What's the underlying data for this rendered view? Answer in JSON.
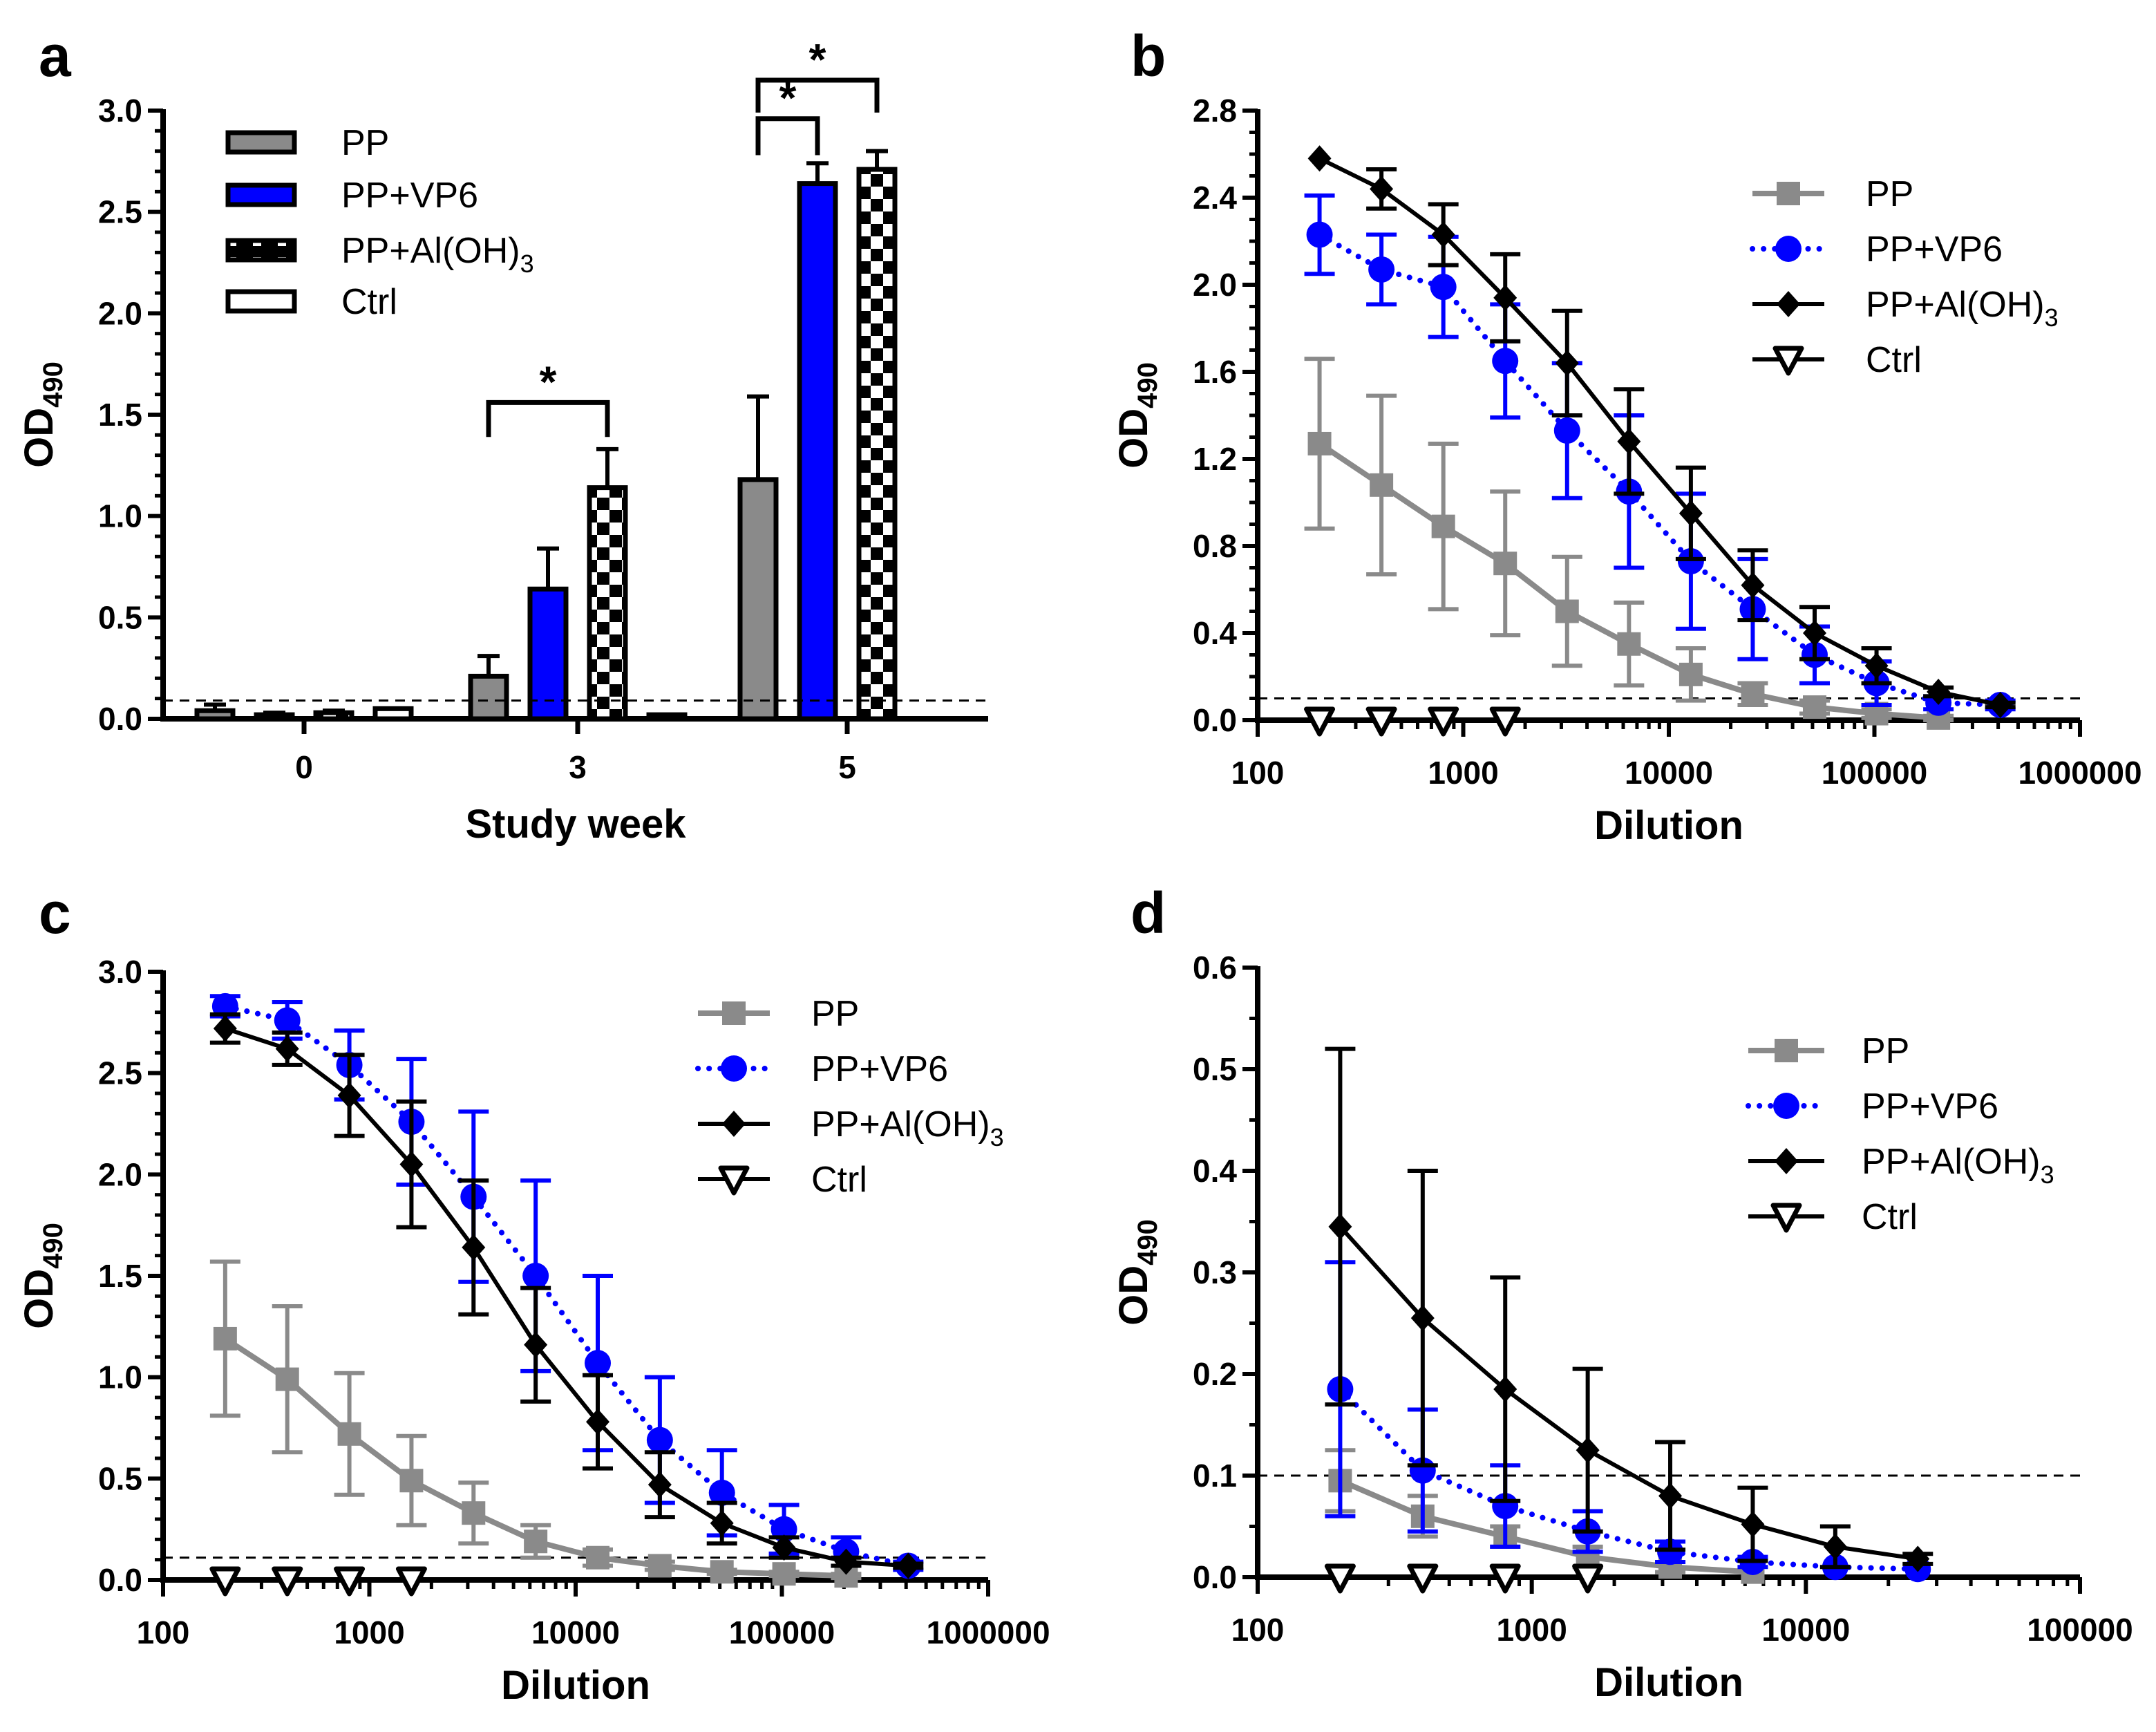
{
  "panel_letters": [
    "a",
    "b",
    "c",
    "d"
  ],
  "colors": {
    "PP": "#8a8a8a",
    "PP+VP6": "#0000ff",
    "PP+Al(OH)3": "#000000",
    "Ctrl": "#000000"
  },
  "chart_data": [
    {
      "panel": "a",
      "type": "bar",
      "xlabel": "Study week",
      "ylabel": "OD",
      "ylabel_sub": "490",
      "ylim": [
        0,
        3.0
      ],
      "yticks": [
        "0.0",
        "0.5",
        "1.0",
        "1.5",
        "2.0",
        "2.5",
        "3.0"
      ],
      "categories": [
        "0",
        "3",
        "5"
      ],
      "cutoff": 0.09,
      "series": [
        {
          "name": "PP",
          "values": [
            0.04,
            0.21,
            1.18
          ],
          "errors": [
            0.03,
            0.1,
            0.41
          ]
        },
        {
          "name": "PP+VP6",
          "values": [
            0.02,
            0.64,
            2.64
          ],
          "errors": [
            0.01,
            0.2,
            0.1
          ]
        },
        {
          "name": "PP+Al(OH)3",
          "values": [
            0.03,
            1.14,
            2.71
          ],
          "errors": [
            0.01,
            0.19,
            0.09
          ]
        },
        {
          "name": "Ctrl",
          "values": [
            0.05,
            0.02,
            0.0
          ],
          "errors": [
            0.0,
            0.0,
            0.0
          ]
        }
      ],
      "significance": [
        {
          "week": "3",
          "from": "PP",
          "to": "PP+Al(OH)3",
          "label": "*"
        },
        {
          "week": "5",
          "from": "PP",
          "to": "PP+VP6",
          "label": "*"
        },
        {
          "week": "5",
          "from": "PP",
          "to": "PP+Al(OH)3",
          "label": "*"
        }
      ]
    },
    {
      "panel": "b",
      "type": "line",
      "xlabel": "Dilution",
      "ylabel": "OD",
      "ylabel_sub": "490",
      "xscale": "log",
      "xlim": [
        100,
        1000000
      ],
      "xticks": [
        "100",
        "1000",
        "10000",
        "100000",
        "1000000"
      ],
      "ylim": [
        0,
        2.8
      ],
      "yticks": [
        "0.0",
        "0.4",
        "0.8",
        "1.2",
        "1.6",
        "2.0",
        "2.4",
        "2.8"
      ],
      "cutoff": 0.1,
      "series": [
        {
          "name": "PP",
          "x": [
            200,
            400,
            800,
            1600,
            3200,
            6400,
            12800,
            25600,
            51200,
            102400,
            204800
          ],
          "y": [
            1.27,
            1.08,
            0.89,
            0.72,
            0.5,
            0.35,
            0.21,
            0.12,
            0.06,
            0.03,
            0.01
          ],
          "err": [
            0.39,
            0.41,
            0.38,
            0.33,
            0.25,
            0.19,
            0.12,
            0.05,
            0.03,
            0.02,
            0.01
          ]
        },
        {
          "name": "PP+VP6",
          "x": [
            200,
            400,
            800,
            1600,
            3200,
            6400,
            12800,
            25600,
            51200,
            102400,
            204800,
            409600
          ],
          "y": [
            2.23,
            2.07,
            1.99,
            1.65,
            1.33,
            1.05,
            0.73,
            0.51,
            0.3,
            0.17,
            0.08,
            0.07
          ],
          "err": [
            0.18,
            0.16,
            0.23,
            0.26,
            0.31,
            0.35,
            0.31,
            0.23,
            0.13,
            0.1,
            0.03,
            0.02
          ]
        },
        {
          "name": "PP+Al(OH)3",
          "x": [
            200,
            400,
            800,
            1600,
            3200,
            6400,
            12800,
            25600,
            51200,
            102400,
            204800,
            409600
          ],
          "y": [
            2.58,
            2.44,
            2.23,
            1.94,
            1.64,
            1.28,
            0.95,
            0.62,
            0.4,
            0.25,
            0.13,
            0.07
          ],
          "err": [
            0.0,
            0.09,
            0.14,
            0.2,
            0.24,
            0.24,
            0.21,
            0.16,
            0.12,
            0.08,
            0.02,
            0.01
          ]
        },
        {
          "name": "Ctrl",
          "x": [
            200,
            400,
            800,
            1600
          ],
          "y": [
            0,
            0,
            0,
            0
          ],
          "err": [
            0,
            0,
            0,
            0
          ]
        }
      ]
    },
    {
      "panel": "c",
      "type": "line",
      "xlabel": "Dilution",
      "ylabel": "OD",
      "ylabel_sub": "490",
      "xscale": "log",
      "xlim": [
        100,
        1000000
      ],
      "xticks": [
        "100",
        "1000",
        "10000",
        "100000",
        "1000000"
      ],
      "ylim": [
        0,
        3.0
      ],
      "yticks": [
        "0.0",
        "0.5",
        "1.0",
        "1.5",
        "2.0",
        "2.5",
        "3.0"
      ],
      "cutoff": 0.11,
      "series": [
        {
          "name": "PP",
          "x": [
            200,
            400,
            800,
            1600,
            3200,
            6400,
            12800,
            25600,
            51200,
            102400,
            204800
          ],
          "y": [
            1.19,
            0.99,
            0.72,
            0.49,
            0.33,
            0.19,
            0.11,
            0.07,
            0.04,
            0.03,
            0.02
          ],
          "err": [
            0.38,
            0.36,
            0.3,
            0.22,
            0.15,
            0.08,
            0.04,
            0.02,
            0.01,
            0.01,
            0.01
          ]
        },
        {
          "name": "PP+VP6",
          "x": [
            200,
            400,
            800,
            1600,
            3200,
            6400,
            12800,
            25600,
            51200,
            102400,
            204800,
            409600
          ],
          "y": [
            2.83,
            2.76,
            2.54,
            2.26,
            1.89,
            1.5,
            1.07,
            0.69,
            0.43,
            0.25,
            0.14,
            0.07
          ],
          "err": [
            0.05,
            0.09,
            0.17,
            0.31,
            0.42,
            0.47,
            0.43,
            0.31,
            0.21,
            0.12,
            0.07,
            0.02
          ]
        },
        {
          "name": "PP+Al(OH)3",
          "x": [
            200,
            400,
            800,
            1600,
            3200,
            6400,
            12800,
            25600,
            51200,
            102400,
            204800,
            409600
          ],
          "y": [
            2.72,
            2.62,
            2.39,
            2.05,
            1.64,
            1.16,
            0.78,
            0.47,
            0.28,
            0.16,
            0.09,
            0.07
          ],
          "err": [
            0.07,
            0.08,
            0.2,
            0.31,
            0.33,
            0.28,
            0.23,
            0.16,
            0.1,
            0.05,
            0.02,
            0.01
          ]
        },
        {
          "name": "Ctrl",
          "x": [
            200,
            400,
            800,
            1600
          ],
          "y": [
            0,
            0,
            0,
            0
          ],
          "err": [
            0,
            0,
            0,
            0
          ]
        }
      ]
    },
    {
      "panel": "d",
      "type": "line",
      "xlabel": "Dilution",
      "ylabel": "OD",
      "ylabel_sub": "490",
      "xscale": "log",
      "xlim": [
        100,
        100000
      ],
      "xticks": [
        "100",
        "1000",
        "10000",
        "100000"
      ],
      "ylim": [
        0,
        0.6
      ],
      "yticks": [
        "0.0",
        "0.1",
        "0.2",
        "0.3",
        "0.4",
        "0.5",
        "0.6"
      ],
      "cutoff": 0.1,
      "series": [
        {
          "name": "PP",
          "x": [
            200,
            400,
            800,
            1600,
            3200,
            6400
          ],
          "y": [
            0.095,
            0.06,
            0.04,
            0.02,
            0.01,
            0.005
          ],
          "err": [
            0.03,
            0.02,
            0.01,
            0.01,
            0.005,
            0.0
          ]
        },
        {
          "name": "PP+VP6",
          "x": [
            200,
            400,
            800,
            1600,
            3200,
            6400,
            12800,
            25600
          ],
          "y": [
            0.185,
            0.105,
            0.07,
            0.045,
            0.025,
            0.015,
            0.01,
            0.008
          ],
          "err": [
            0.125,
            0.06,
            0.04,
            0.02,
            0.01,
            0.005,
            0.003,
            0.002
          ]
        },
        {
          "name": "PP+Al(OH)3",
          "x": [
            200,
            400,
            800,
            1600,
            3200,
            6400,
            12800,
            25600
          ],
          "y": [
            0.345,
            0.255,
            0.185,
            0.125,
            0.08,
            0.052,
            0.03,
            0.018
          ],
          "err": [
            0.175,
            0.145,
            0.11,
            0.08,
            0.053,
            0.036,
            0.02,
            0.005
          ]
        },
        {
          "name": "Ctrl",
          "x": [
            200,
            400,
            800,
            1600
          ],
          "y": [
            0,
            0,
            0,
            0
          ],
          "err": [
            0,
            0,
            0,
            0
          ]
        }
      ]
    }
  ]
}
